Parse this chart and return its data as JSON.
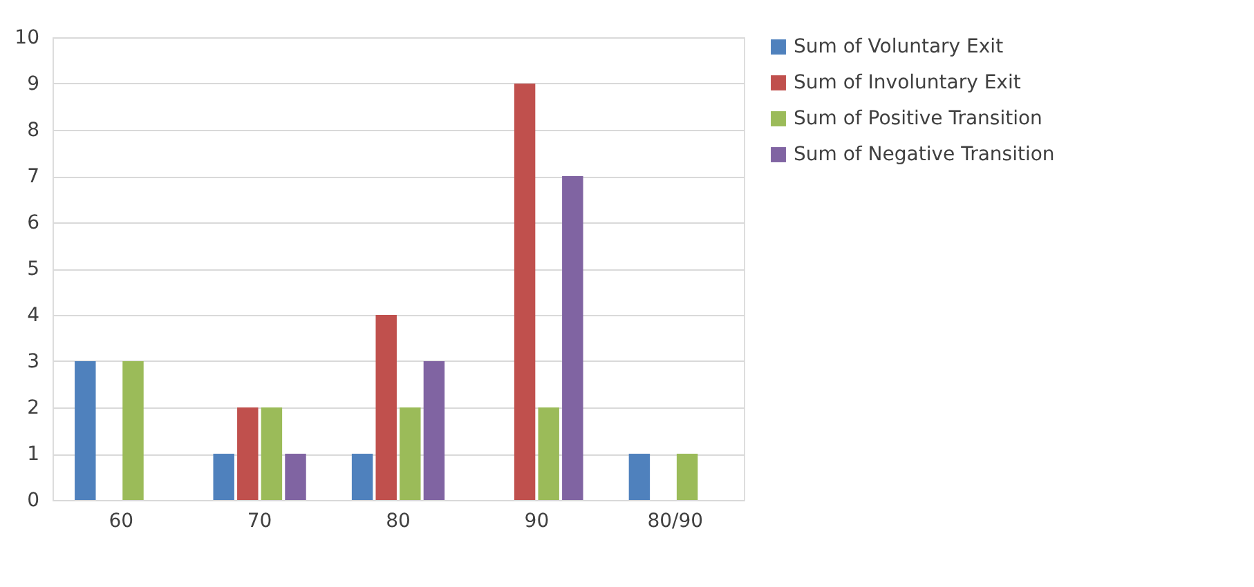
{
  "chart_data": {
    "type": "bar",
    "categories": [
      "60",
      "70",
      "80",
      "90",
      "80/90"
    ],
    "series": [
      {
        "name": "Sum of Voluntary Exit",
        "color": "#4f81bd",
        "values": [
          3,
          1,
          1,
          0,
          1
        ]
      },
      {
        "name": "Sum of Involuntary Exit",
        "color": "#c0504d",
        "values": [
          0,
          2,
          4,
          9,
          0
        ]
      },
      {
        "name": "Sum of Positive Transition",
        "color": "#9bbb59",
        "values": [
          3,
          2,
          2,
          2,
          1
        ]
      },
      {
        "name": "Sum of Negative Transition",
        "color": "#8064a2",
        "values": [
          0,
          1,
          3,
          7,
          0
        ]
      }
    ],
    "ylim": [
      0,
      10
    ],
    "yticks": [
      0,
      1,
      2,
      3,
      4,
      5,
      6,
      7,
      8,
      9,
      10
    ],
    "grid": "y",
    "legend": "right"
  }
}
